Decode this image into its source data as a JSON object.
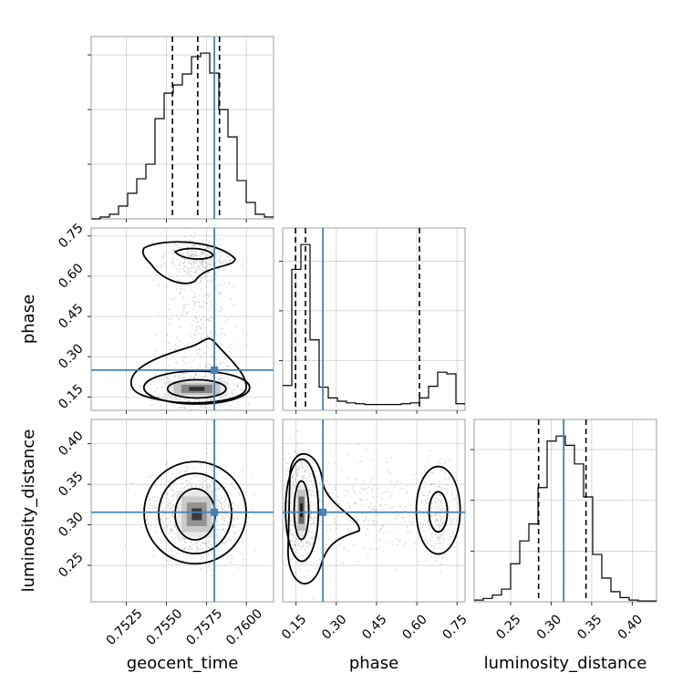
{
  "chart_data": {
    "type": "corner",
    "parameters": [
      "geocent_time",
      "phase",
      "luminosity_distance"
    ],
    "truth_color": "#4682b4",
    "grid": true,
    "diagonals": [
      {
        "parameter": "geocent_time",
        "xlim": [
          0.7503,
          0.7617
        ],
        "xticks": [
          "0.7525",
          "0.7550",
          "0.7575",
          "0.7600"
        ],
        "bin_edges": [
          0.7503,
          0.75087,
          0.75144,
          0.75201,
          0.75258,
          0.75315,
          0.75372,
          0.75429,
          0.75486,
          0.75543,
          0.756,
          0.75657,
          0.75714,
          0.75771,
          0.75828,
          0.75885,
          0.75942,
          0.75999,
          0.76056,
          0.76113,
          0.7617
        ],
        "counts": [
          0,
          2,
          5,
          14,
          28,
          44,
          60,
          110,
          138,
          147,
          159,
          178,
          182,
          160,
          120,
          90,
          42,
          18,
          5,
          2
        ],
        "quantiles": [
          0.75538,
          0.75696,
          0.75832
        ],
        "truth": 0.758
      },
      {
        "parameter": "phase",
        "xlim": [
          0.1,
          0.78
        ],
        "xticks": [
          "0.15",
          "0.30",
          "0.45",
          "0.60",
          "0.75"
        ],
        "bin_edges": [
          0.1,
          0.134,
          0.168,
          0.202,
          0.236,
          0.27,
          0.304,
          0.338,
          0.372,
          0.406,
          0.44,
          0.474,
          0.508,
          0.542,
          0.576,
          0.61,
          0.644,
          0.678,
          0.712,
          0.746,
          0.78
        ],
        "counts": [
          30,
          170,
          200,
          85,
          28,
          15,
          11,
          9,
          8,
          7,
          7,
          7,
          7,
          8,
          9,
          15,
          29,
          46,
          44,
          8
        ],
        "quantiles": [
          0.148,
          0.185,
          0.61
        ],
        "truth": 0.25
      },
      {
        "parameter": "luminosity_distance",
        "xlim": [
          0.205,
          0.43
        ],
        "xticks": [
          "0.25",
          "0.30",
          "0.35",
          "0.40"
        ],
        "bin_edges": [
          0.205,
          0.21625,
          0.2275,
          0.23875,
          0.25,
          0.26125,
          0.2725,
          0.28375,
          0.295,
          0.30625,
          0.3175,
          0.32875,
          0.34,
          0.35125,
          0.3625,
          0.37375,
          0.385,
          0.39625,
          0.4075,
          0.41875,
          0.43
        ],
        "counts": [
          2,
          4,
          8,
          15,
          45,
          72,
          92,
          135,
          190,
          196,
          185,
          163,
          124,
          56,
          28,
          12,
          5,
          2,
          1,
          1
        ],
        "quantiles": [
          0.2845,
          0.3155,
          0.343
        ],
        "truth": 0.3155
      }
    ],
    "panels": [
      {
        "x": "geocent_time",
        "y": "phase",
        "ylim": [
          0.1,
          0.78
        ],
        "yticks": [
          "0.15",
          "0.30",
          "0.45",
          "0.60",
          "0.75"
        ],
        "truth": [
          0.758,
          0.25
        ]
      },
      {
        "x": "geocent_time",
        "y": "luminosity_distance",
        "ylim": [
          0.205,
          0.43
        ],
        "yticks": [
          "0.25",
          "0.30",
          "0.35",
          "0.40"
        ],
        "truth": [
          0.758,
          0.3155
        ]
      },
      {
        "x": "phase",
        "y": "luminosity_distance",
        "ylim": [
          0.205,
          0.43
        ],
        "yticks": [
          "0.25",
          "0.30",
          "0.35",
          "0.40"
        ],
        "truth": [
          0.25,
          0.3155
        ]
      }
    ]
  }
}
